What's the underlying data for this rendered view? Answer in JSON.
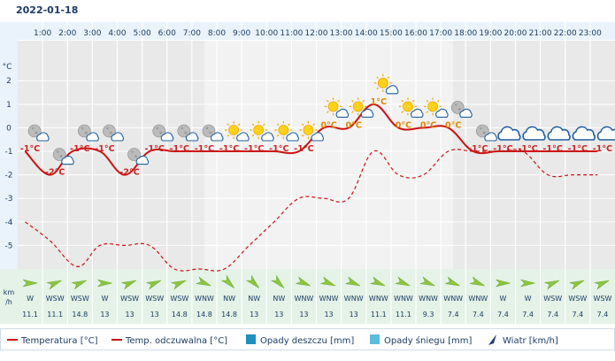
{
  "date": "2022-01-18",
  "unit_temp": "°C",
  "unit_wind": [
    "km",
    "/h"
  ],
  "chart_data": {
    "type": "line",
    "hours": [
      "1:00",
      "2:00",
      "3:00",
      "4:00",
      "5:00",
      "6:00",
      "7:00",
      "8:00",
      "9:00",
      "10:00",
      "11:00",
      "12:00",
      "13:00",
      "14:00",
      "15:00",
      "16:00",
      "17:00",
      "18:00",
      "19:00",
      "20:00",
      "21:00",
      "22:00",
      "23:00"
    ],
    "ylim": [
      -6,
      3.7
    ],
    "yticks": [
      2,
      1,
      0,
      -1,
      -2,
      -3,
      -4,
      -5
    ],
    "ytick_labels": [
      "2",
      "1",
      "0",
      "-1",
      "-2",
      "-3",
      "-4",
      "-5"
    ],
    "series": [
      {
        "name": "Temperatura [°C]",
        "color": "#cc1111",
        "x": [
          0.3,
          1.3,
          2.2,
          3.3,
          4.3,
          5.3,
          6.3,
          7.3,
          8.3,
          9.3,
          10.3,
          11.3,
          12.3,
          13.3,
          14.3,
          15.3,
          16.3,
          17.3,
          18.3,
          19.3,
          20.3,
          21.3,
          22.3,
          23.3
        ],
        "y": [
          -1,
          -2,
          -1,
          -1,
          -2,
          -1,
          -1,
          -1,
          -1,
          -1,
          -1,
          -1,
          0,
          0,
          1,
          0,
          0,
          0,
          -1,
          -1,
          -1,
          -1,
          -1,
          -1
        ]
      },
      {
        "name": "Temp. odczuwalna [°C]",
        "color": "#cc1111",
        "dashed": true,
        "x": [
          0.3,
          1.3,
          2.4,
          3.3,
          4.3,
          5.3,
          6.3,
          7.3,
          8.3,
          9.3,
          10.3,
          11.3,
          12.3,
          13.3,
          14.3,
          15.3,
          16.3,
          17.3,
          18.3,
          19.3,
          20.3,
          21.3,
          22.3,
          23.3
        ],
        "y": [
          -4,
          -4.8,
          -5.9,
          -5,
          -5,
          -5,
          -6,
          -6,
          -6,
          -5,
          -4,
          -3,
          -3,
          -3,
          -1,
          -2,
          -2,
          -1,
          -1,
          -1,
          -1,
          -2,
          -2,
          -2
        ]
      }
    ],
    "temp_labels": [
      {
        "hour": 1,
        "label": "-1°C",
        "y": -1
      },
      {
        "hour": 2,
        "label": "-2°C",
        "y": -2
      },
      {
        "hour": 3,
        "label": "-1°C",
        "y": -1
      },
      {
        "hour": 4,
        "label": "-1°C",
        "y": -1
      },
      {
        "hour": 5,
        "label": "-2°C",
        "y": -2
      },
      {
        "hour": 6,
        "label": "-1°C",
        "y": -1
      },
      {
        "hour": 7,
        "label": "-1°C",
        "y": -1
      },
      {
        "hour": 8,
        "label": "-1°C",
        "y": -1
      },
      {
        "hour": 9,
        "label": "-1°C",
        "y": -1
      },
      {
        "hour": 10,
        "label": "-1°C",
        "y": -1
      },
      {
        "hour": 11,
        "label": "-1°C",
        "y": -1
      },
      {
        "hour": 12,
        "label": "-1°C",
        "y": -1
      },
      {
        "hour": 13,
        "label": "0°C",
        "y": 0
      },
      {
        "hour": 14,
        "label": "0°C",
        "y": 0
      },
      {
        "hour": 15,
        "label": "1°C",
        "y": 1
      },
      {
        "hour": 16,
        "label": "0°C",
        "y": 0
      },
      {
        "hour": 17,
        "label": "0°C",
        "y": 0
      },
      {
        "hour": 18,
        "label": "0°C",
        "y": 0
      },
      {
        "hour": 19,
        "label": "-1°C",
        "y": -1
      },
      {
        "hour": 20,
        "label": "-1°C",
        "y": -1
      },
      {
        "hour": 21,
        "label": "-1°C",
        "y": -1
      },
      {
        "hour": 22,
        "label": "-1°C",
        "y": -1
      },
      {
        "hour": 23,
        "label": "-1°C",
        "y": -1
      },
      {
        "hour": 24,
        "label": "-1°C",
        "y": -1
      }
    ],
    "weather_icons": [
      "night-cloud-icon",
      "night-cloud-icon",
      "night-cloud-icon",
      "night-cloud-icon",
      "night-cloud-icon",
      "night-cloud-icon",
      "night-cloud-icon",
      "night-cloud-icon",
      "sun-cloud-icon",
      "sun-cloud-icon",
      "sun-cloud-icon",
      "sun-cloud-icon",
      "sun-cloud-icon",
      "sun-cloud-icon",
      "sun-cloud-icon",
      "sun-cloud-icon",
      "sun-cloud-icon",
      "night-cloud-icon",
      "night-cloud-icon",
      "cloud-icon",
      "cloud-icon",
      "cloud-icon",
      "cloud-icon",
      "cloud-icon"
    ],
    "wind": [
      {
        "dir": "W",
        "speed": "11.1"
      },
      {
        "dir": "WSW",
        "speed": "11.1"
      },
      {
        "dir": "WSW",
        "speed": "14.8"
      },
      {
        "dir": "W",
        "speed": "13"
      },
      {
        "dir": "WSW",
        "speed": "13"
      },
      {
        "dir": "WSW",
        "speed": "13"
      },
      {
        "dir": "WSW",
        "speed": "14.8"
      },
      {
        "dir": "WNW",
        "speed": "14.8"
      },
      {
        "dir": "NW",
        "speed": "14.8"
      },
      {
        "dir": "NW",
        "speed": "13"
      },
      {
        "dir": "NW",
        "speed": "13"
      },
      {
        "dir": "WNW",
        "speed": "13"
      },
      {
        "dir": "WNW",
        "speed": "13"
      },
      {
        "dir": "WNW",
        "speed": "13"
      },
      {
        "dir": "WNW",
        "speed": "11.1"
      },
      {
        "dir": "WNW",
        "speed": "11.1"
      },
      {
        "dir": "WNW",
        "speed": "9.3"
      },
      {
        "dir": "WNW",
        "speed": "7.4"
      },
      {
        "dir": "WNW",
        "speed": "7.4"
      },
      {
        "dir": "W",
        "speed": "7.4"
      },
      {
        "dir": "W",
        "speed": "7.4"
      },
      {
        "dir": "WSW",
        "speed": "7.4"
      },
      {
        "dir": "WSW",
        "speed": "7.4"
      },
      {
        "dir": "WSW",
        "speed": "7.4"
      }
    ],
    "legend": [
      {
        "key": "temp",
        "label": "Temperatura [°C]",
        "color": "#cc1111"
      },
      {
        "key": "feels",
        "label": "Temp. odczuwalna [°C]",
        "color": "#cc1111"
      },
      {
        "key": "rain",
        "label": "Opady deszczu [mm]",
        "color": "#1f8fbf"
      },
      {
        "key": "snow",
        "label": "Opady śniegu [mm]",
        "color": "#5bbcdd"
      },
      {
        "key": "wind",
        "label": "Wiatr [km/h]",
        "color": "#1c3c66"
      }
    ],
    "legend_position": "bottom",
    "grid": true
  }
}
